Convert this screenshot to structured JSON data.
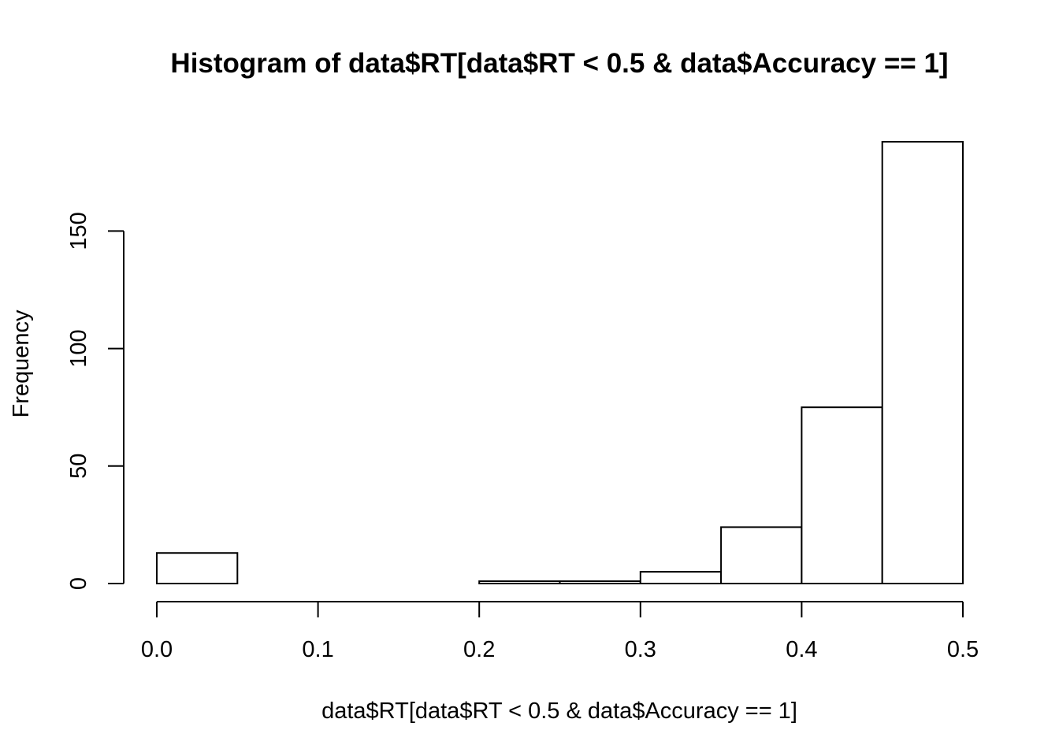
{
  "chart_data": {
    "type": "bar",
    "title": "Histogram of data$RT[data$RT < 0.5 & data$Accuracy == 1]",
    "xlabel": "data$RT[data$RT < 0.5 & data$Accuracy == 1]",
    "ylabel": "Frequency",
    "bin_edges": [
      0.0,
      0.05,
      0.1,
      0.15,
      0.2,
      0.25,
      0.3,
      0.35,
      0.4,
      0.45,
      0.5
    ],
    "values": [
      13,
      0,
      0,
      0,
      1,
      1,
      5,
      24,
      75,
      188
    ],
    "xlim": [
      0.0,
      0.5
    ],
    "ylim": [
      0,
      188
    ],
    "x_ticks": [
      0.0,
      0.1,
      0.2,
      0.3,
      0.4,
      0.5
    ],
    "x_tick_labels": [
      "0.0",
      "0.1",
      "0.2",
      "0.3",
      "0.4",
      "0.5"
    ],
    "y_ticks": [
      0,
      50,
      100,
      150
    ],
    "y_tick_labels": [
      "0",
      "50",
      "100",
      "150"
    ],
    "grid": false,
    "bar_fill": "#ffffff",
    "bar_stroke": "#000000"
  }
}
